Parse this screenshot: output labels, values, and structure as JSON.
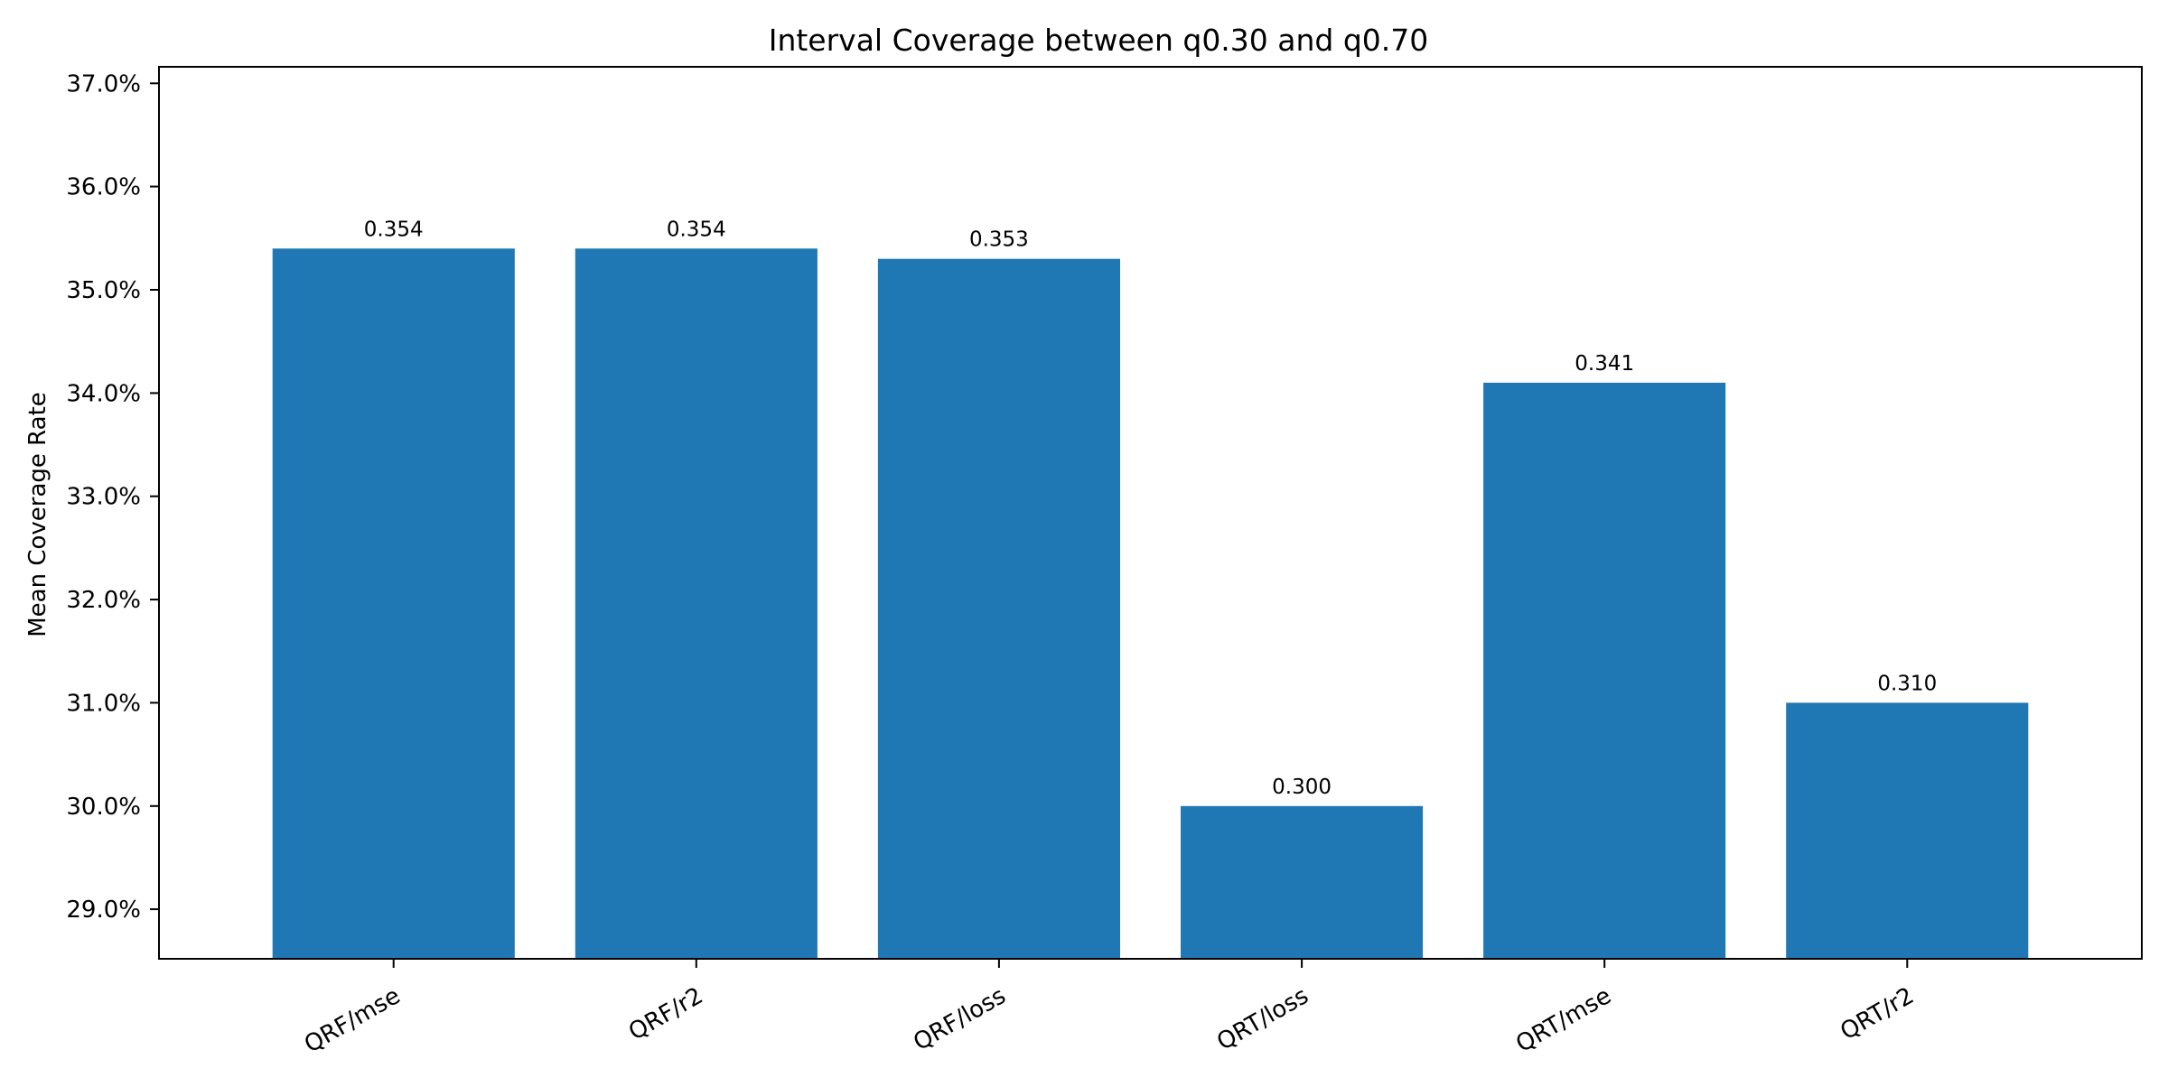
{
  "chart_data": {
    "type": "bar",
    "title": "Interval Coverage between q0.30 and q0.70",
    "xlabel": "",
    "ylabel": "Mean Coverage Rate",
    "categories": [
      "QRF/mse",
      "QRF/r2",
      "QRF/loss",
      "QRT/loss",
      "QRT/mse",
      "QRT/r2"
    ],
    "values": [
      0.354,
      0.354,
      0.353,
      0.3,
      0.341,
      0.31
    ],
    "value_labels": [
      "0.354",
      "0.354",
      "0.353",
      "0.300",
      "0.341",
      "0.310"
    ],
    "ylim": [
      0.2852,
      0.3716
    ],
    "yticks": [
      0.29,
      0.3,
      0.31,
      0.32,
      0.33,
      0.34,
      0.35,
      0.36,
      0.37
    ],
    "ytick_labels": [
      "29.0%",
      "30.0%",
      "31.0%",
      "32.0%",
      "33.0%",
      "34.0%",
      "35.0%",
      "36.0%",
      "37.0%"
    ],
    "grid": false,
    "legend": "none",
    "colors": {
      "bar": "#1f77b4",
      "axis": "#000000",
      "background": "#ffffff"
    }
  }
}
